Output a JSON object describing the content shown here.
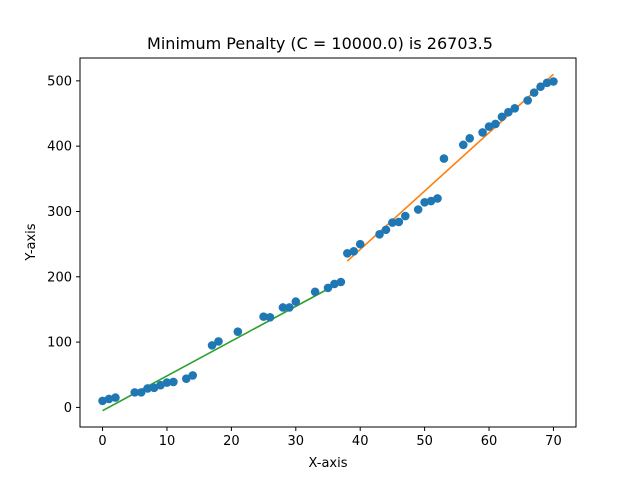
{
  "chart_data": {
    "type": "scatter",
    "title": "Minimum Penalty (C = 10000.0) is 26703.5",
    "xlabel": "X-axis",
    "ylabel": "Y-axis",
    "xlim": [
      -3.5,
      73.5
    ],
    "ylim": [
      -30,
      535
    ],
    "xticks": [
      0,
      10,
      20,
      30,
      40,
      50,
      60,
      70
    ],
    "yticks": [
      0,
      100,
      200,
      300,
      400,
      500
    ],
    "grid": false,
    "colors": {
      "points": "#1f77b4",
      "fit1": "#2ca02c",
      "fit2": "#ff7f0e"
    },
    "series": [
      {
        "kind": "points",
        "x": [
          0,
          1,
          2,
          5,
          6,
          7,
          8,
          9,
          10,
          11,
          13,
          14,
          17,
          18,
          21,
          25,
          26,
          28,
          29,
          30,
          33,
          35,
          36,
          37,
          38,
          39,
          40,
          43,
          44,
          45,
          46,
          47,
          49,
          50,
          51,
          52,
          53,
          56,
          57,
          59,
          60,
          61,
          62,
          63,
          64,
          66,
          67,
          68,
          69,
          70
        ],
        "y": [
          10,
          13,
          15,
          23,
          23,
          29,
          30,
          34,
          38,
          39,
          44,
          49,
          95,
          101,
          116,
          139,
          138,
          153,
          153,
          162,
          177,
          183,
          189,
          192,
          236,
          239,
          250,
          265,
          272,
          283,
          284,
          293,
          303,
          314,
          316,
          320,
          381,
          402,
          412,
          421,
          430,
          434,
          445,
          452,
          458,
          470,
          482,
          491,
          497,
          499
        ]
      },
      {
        "kind": "line",
        "x": [
          0,
          37
        ],
        "y": [
          -5,
          192
        ]
      },
      {
        "kind": "line",
        "x": [
          38,
          70
        ],
        "y": [
          224,
          510
        ]
      }
    ]
  }
}
